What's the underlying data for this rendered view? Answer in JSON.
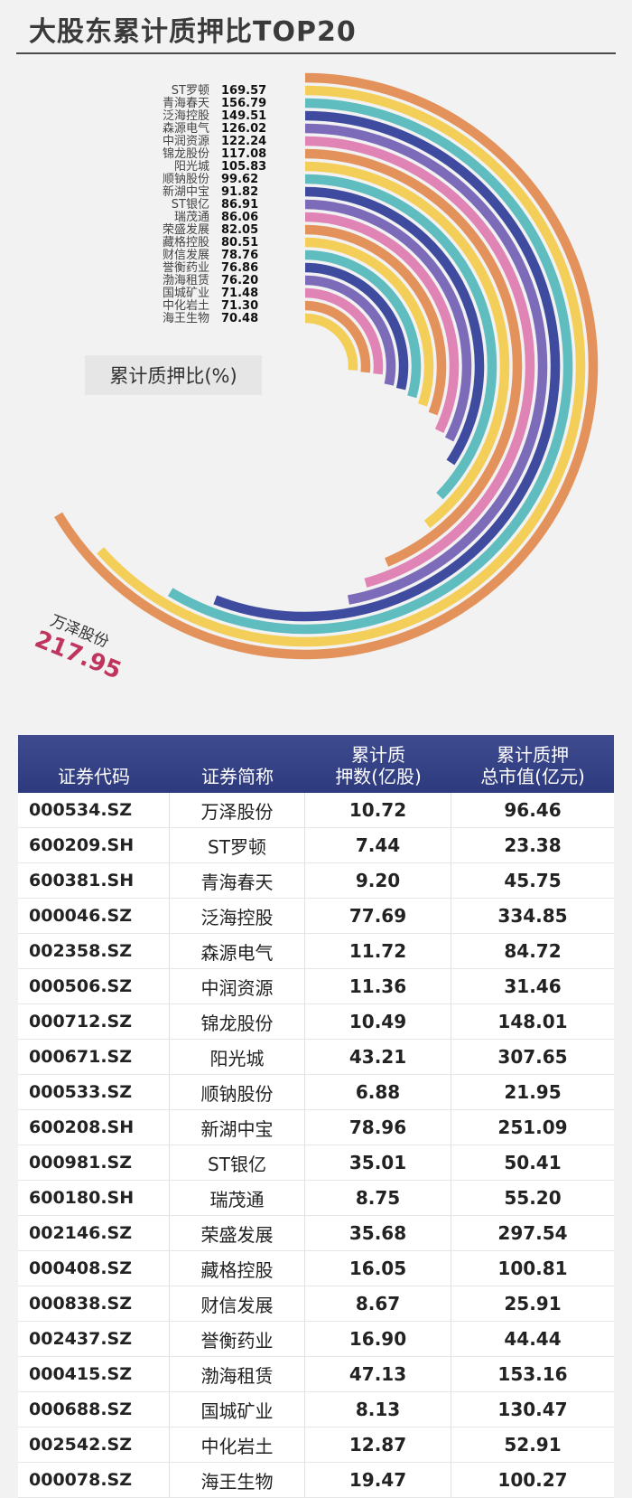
{
  "header": {
    "title": "大股东累计质押比TOP20"
  },
  "chart_data": {
    "type": "radial-bar",
    "legend_label": "累计质押比(%)",
    "categories": [
      "万泽股份",
      "ST罗顿",
      "青海春天",
      "泛海控股",
      "森源电气",
      "中润资源",
      "锦龙股份",
      "阳光城",
      "顺钠股份",
      "新湖中宝",
      "ST银亿",
      "瑞茂通",
      "荣盛发展",
      "藏格控股",
      "财信发展",
      "誉衡药业",
      "渤海租赁",
      "国城矿业",
      "中化岩土",
      "海王生物"
    ],
    "values": [
      217.95,
      169.57,
      156.79,
      149.51,
      126.02,
      122.24,
      117.08,
      105.83,
      99.62,
      91.82,
      86.91,
      86.06,
      82.05,
      80.51,
      78.76,
      76.86,
      76.2,
      71.48,
      71.3,
      70.48
    ],
    "value_labels": [
      "217.95",
      "169.57",
      "156.79",
      "149.51",
      "126.02",
      "122.24",
      "117.08",
      "105.83",
      "99.62",
      "91.82",
      "86.91",
      "86.06",
      "82.05",
      "80.51",
      "78.76",
      "76.86",
      "76.20",
      "71.48",
      "71.30",
      "70.48"
    ],
    "colors": [
      "#e4925b",
      "#f3cf5a",
      "#5fbcbf",
      "#3e4b9f",
      "#7c6bb9",
      "#e084b6",
      "#e4925b",
      "#f3cf5a",
      "#5fbcbf",
      "#3e4b9f",
      "#7c6bb9",
      "#e084b6",
      "#e4925b",
      "#f3cf5a",
      "#5fbcbf",
      "#3e4b9f",
      "#7c6bb9",
      "#e084b6",
      "#e4925b",
      "#f3cf5a"
    ],
    "highlight_color": "#c0355d"
  },
  "table": {
    "headers": [
      [
        "证券代码"
      ],
      [
        "证券简称"
      ],
      [
        "累计质",
        "押数(亿股)"
      ],
      [
        "累计质押",
        "总市值(亿元)"
      ]
    ],
    "rows": [
      [
        "000534.SZ",
        "万泽股份",
        "10.72",
        "96.46"
      ],
      [
        "600209.SH",
        "ST罗顿",
        "7.44",
        "23.38"
      ],
      [
        "600381.SH",
        "青海春天",
        "9.20",
        "45.75"
      ],
      [
        "000046.SZ",
        "泛海控股",
        "77.69",
        "334.85"
      ],
      [
        "002358.SZ",
        "森源电气",
        "11.72",
        "84.72"
      ],
      [
        "000506.SZ",
        "中润资源",
        "11.36",
        "31.46"
      ],
      [
        "000712.SZ",
        "锦龙股份",
        "10.49",
        "148.01"
      ],
      [
        "000671.SZ",
        "阳光城",
        "43.21",
        "307.65"
      ],
      [
        "000533.SZ",
        "顺钠股份",
        "6.88",
        "21.95"
      ],
      [
        "600208.SH",
        "新湖中宝",
        "78.96",
        "251.09"
      ],
      [
        "000981.SZ",
        "ST银亿",
        "35.01",
        "50.41"
      ],
      [
        "600180.SH",
        "瑞茂通",
        "8.75",
        "55.20"
      ],
      [
        "002146.SZ",
        "荣盛发展",
        "35.68",
        "297.54"
      ],
      [
        "000408.SZ",
        "藏格控股",
        "16.05",
        "100.81"
      ],
      [
        "000838.SZ",
        "财信发展",
        "8.67",
        "25.91"
      ],
      [
        "002437.SZ",
        "誉衡药业",
        "16.90",
        "44.44"
      ],
      [
        "000415.SZ",
        "渤海租赁",
        "47.13",
        "153.16"
      ],
      [
        "000688.SZ",
        "国城矿业",
        "8.13",
        "130.47"
      ],
      [
        "002542.SZ",
        "中化岩土",
        "12.87",
        "52.91"
      ],
      [
        "000078.SZ",
        "海王生物",
        "19.47",
        "100.27"
      ]
    ]
  }
}
